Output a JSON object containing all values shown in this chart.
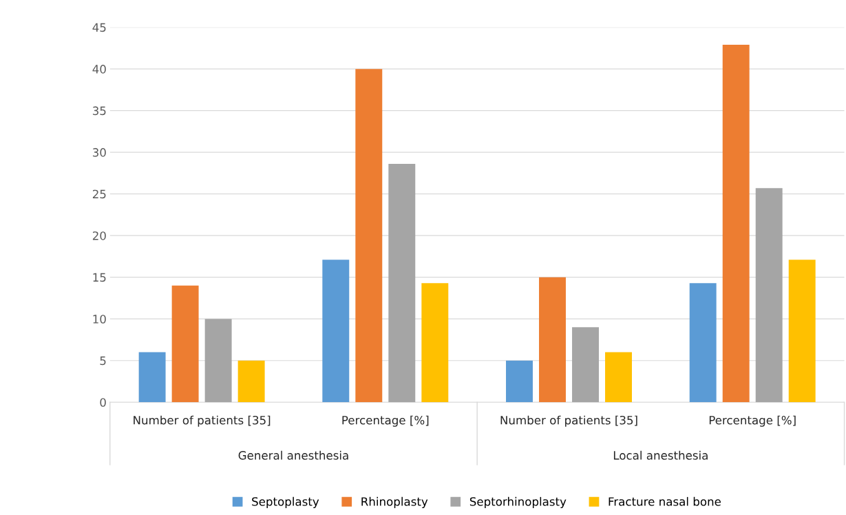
{
  "chart_data": {
    "type": "bar",
    "categories": [
      "Number of patients [35]",
      "Percentage [%]",
      "Number of patients [35]",
      "Percentage [%]"
    ],
    "annotations": [
      "General anesthesia",
      "Local anesthesia"
    ],
    "series": [
      {
        "name": "Septoplasty",
        "color": "#5b9bd5",
        "values": [
          6,
          17.1,
          5,
          14.3
        ]
      },
      {
        "name": "Rhinoplasty",
        "color": "#ed7d31",
        "values": [
          14,
          40,
          15,
          42.9
        ]
      },
      {
        "name": "Septorhinoplasty",
        "color": "#a5a5a5",
        "values": [
          10,
          28.6,
          9,
          25.7
        ]
      },
      {
        "name": "Fracture nasal bone",
        "color": "#ffc000",
        "values": [
          5,
          14.3,
          6,
          17.1
        ]
      }
    ],
    "ylim": [
      0,
      45
    ],
    "yticks": [
      0,
      5,
      10,
      15,
      20,
      25,
      30,
      35,
      40,
      45
    ],
    "grid": "y",
    "legend": "bottom"
  }
}
